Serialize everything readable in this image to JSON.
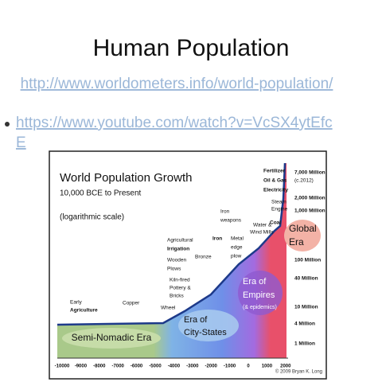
{
  "slide": {
    "title": "Human Population",
    "links": [
      "http://www.worldometers.info/world-population/",
      "https://www.youtube.com/watch?v=VcSX4ytEfc",
      "E"
    ]
  },
  "figure": {
    "title": "World Population Growth",
    "subtitle": "10,000 BCE to Present",
    "note": "(logarithmic scale)",
    "x_labels": [
      "-10000",
      "-9000",
      "-8000",
      "-7000",
      "-6000",
      "-5000",
      "-4000",
      "-3000",
      "-2000",
      "-1000",
      "0",
      "1000",
      "2000"
    ],
    "right_labels": [
      "7,000 Million",
      "(c.2012)",
      "2,000 Million",
      "1,000 Million",
      "100 Million",
      "40 Million",
      "10 Million",
      "4 Million",
      "1 Million"
    ],
    "annotations": [
      "Early",
      "Agriculture",
      "Copper",
      "Wheel",
      "Kiln-fired",
      "Pottery &",
      "Bricks",
      "Wooden",
      "Plows",
      "Agricultural",
      "Irrigation",
      "Bronze",
      "Iron",
      "Metal",
      "edge",
      "plow",
      "Iron",
      "weapons",
      "Water &",
      "Wind Mills",
      "Coal",
      "Steam",
      "Engine",
      "Fertilizer",
      "Oil & Gas",
      "Electricity"
    ],
    "eras": [
      "Semi-Nomadic Era",
      "Era of",
      "City-States",
      "Era of",
      "Empires",
      "(& epidemics)",
      "Global",
      "Era"
    ],
    "credit": "© 2009 Bryan K. Long"
  }
}
